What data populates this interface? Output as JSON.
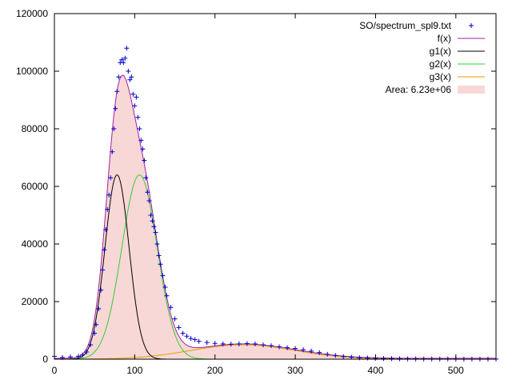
{
  "chart_data": {
    "type": "scatter",
    "title": "",
    "xlabel": "",
    "ylabel": "",
    "xlim": [
      0,
      550
    ],
    "ylim": [
      0,
      120000
    ],
    "x_ticks": [
      "0",
      "100",
      "200",
      "300",
      "400",
      "500"
    ],
    "y_ticks": [
      "0",
      "20000",
      "40000",
      "60000",
      "80000",
      "100000",
      "120000"
    ],
    "grid": false,
    "legend_position": "top-right",
    "colors": {
      "points": "#0000cc",
      "f": "#a020a0",
      "g1": "#000000",
      "g2": "#33cc33",
      "g3": "#e69f00",
      "area_fill": "#f8d8d6"
    },
    "series": [
      {
        "name": "SO/spectrum_spl9.txt",
        "kind": "points",
        "points": [
          [
            0,
            1000
          ],
          [
            10,
            600
          ],
          [
            20,
            800
          ],
          [
            30,
            1000
          ],
          [
            35,
            1500
          ],
          [
            40,
            2500
          ],
          [
            45,
            5000
          ],
          [
            50,
            9000
          ],
          [
            52,
            12000
          ],
          [
            55,
            17500
          ],
          [
            58,
            24000
          ],
          [
            60,
            31000
          ],
          [
            62,
            38000
          ],
          [
            64,
            45000
          ],
          [
            66,
            52000
          ],
          [
            68,
            57000
          ],
          [
            70,
            63000
          ],
          [
            72,
            72000
          ],
          [
            74,
            80000
          ],
          [
            76,
            87000
          ],
          [
            78,
            93000
          ],
          [
            80,
            98000
          ],
          [
            82,
            103000
          ],
          [
            84,
            104000
          ],
          [
            86,
            103000
          ],
          [
            88,
            104500
          ],
          [
            90,
            108000
          ],
          [
            92,
            100000
          ],
          [
            94,
            97000
          ],
          [
            96,
            98000
          ],
          [
            98,
            92000
          ],
          [
            100,
            88000
          ],
          [
            102,
            91000
          ],
          [
            104,
            84000
          ],
          [
            106,
            80000
          ],
          [
            108,
            76000
          ],
          [
            110,
            73000
          ],
          [
            112,
            69000
          ],
          [
            114,
            63000
          ],
          [
            116,
            58000
          ],
          [
            118,
            55000
          ],
          [
            120,
            50000
          ],
          [
            122,
            48000
          ],
          [
            124,
            46000
          ],
          [
            126,
            44000
          ],
          [
            128,
            40000
          ],
          [
            130,
            36000
          ],
          [
            132,
            33000
          ],
          [
            135,
            29000
          ],
          [
            138,
            25000
          ],
          [
            140,
            22000
          ],
          [
            145,
            18000
          ],
          [
            150,
            14000
          ],
          [
            155,
            11000
          ],
          [
            160,
            9000
          ],
          [
            165,
            8000
          ],
          [
            170,
            7200
          ],
          [
            175,
            6800
          ],
          [
            180,
            6200
          ],
          [
            190,
            5800
          ],
          [
            200,
            5500
          ],
          [
            210,
            5300
          ],
          [
            220,
            5200
          ],
          [
            230,
            5300
          ],
          [
            240,
            5400
          ],
          [
            250,
            5300
          ],
          [
            260,
            5000
          ],
          [
            270,
            4700
          ],
          [
            280,
            4300
          ],
          [
            290,
            4000
          ],
          [
            300,
            3700
          ],
          [
            310,
            3300
          ],
          [
            320,
            2800
          ],
          [
            330,
            2300
          ],
          [
            340,
            1700
          ],
          [
            350,
            1300
          ],
          [
            360,
            900
          ],
          [
            370,
            700
          ],
          [
            380,
            500
          ],
          [
            390,
            400
          ],
          [
            400,
            300
          ],
          [
            410,
            250
          ],
          [
            420,
            200
          ],
          [
            430,
            150
          ],
          [
            440,
            100
          ],
          [
            450,
            100
          ],
          [
            460,
            80
          ],
          [
            470,
            80
          ],
          [
            480,
            60
          ],
          [
            490,
            60
          ],
          [
            500,
            50
          ],
          [
            510,
            50
          ],
          [
            520,
            40
          ],
          [
            530,
            40
          ],
          [
            540,
            40
          ],
          [
            550,
            40
          ]
        ]
      },
      {
        "name": "f(x)",
        "kind": "line"
      },
      {
        "name": "g1(x)",
        "kind": "line",
        "gaussian": {
          "amplitude": 64000,
          "center": 78,
          "sigma": 15
        }
      },
      {
        "name": "g2(x)",
        "kind": "line",
        "gaussian": {
          "amplitude": 64000,
          "center": 106,
          "sigma": 22
        }
      },
      {
        "name": "g3(x)",
        "kind": "line",
        "gaussian": {
          "amplitude": 5000,
          "center": 235,
          "sigma": 65
        }
      },
      {
        "name": "Area: 6.23e+06",
        "kind": "area"
      }
    ]
  }
}
